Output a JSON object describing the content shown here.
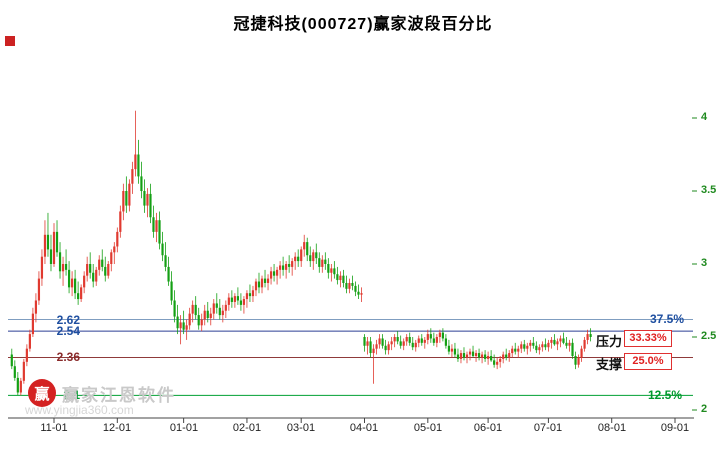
{
  "title": "冠捷科技(000727)赢家波段百分比",
  "watermark": {
    "logo_char": "赢",
    "text": "赢家江恩软件",
    "url": "www.yingjia360.com"
  },
  "annotations": {
    "pressure_label": "压力",
    "support_label": "支撑"
  },
  "colors": {
    "up": "#e03a30",
    "down": "#14a014",
    "axis_text": "#1f8a1f",
    "axis_line": "#444444",
    "box_border": "#e03030",
    "box_text": "#e02020"
  },
  "chart_data": {
    "type": "candlestick",
    "title": "冠捷科技(000727)赢家波段百分比",
    "ylim": [
      2,
      4
    ],
    "grid": false,
    "y_ticks": [
      "4",
      "3.5",
      "3",
      "2.5",
      "2"
    ],
    "y_tick_values": [
      4,
      3.5,
      3,
      2.5,
      2
    ],
    "x_ticks": [
      "11-01",
      "12-01",
      "01-01",
      "02-01",
      "03-01",
      "04-01",
      "05-01",
      "06-01",
      "07-01",
      "08-01",
      "09-01"
    ],
    "x_tick_indices": [
      14,
      35,
      57,
      78,
      96,
      117,
      138,
      158,
      178,
      199,
      220
    ],
    "levels": [
      {
        "price": "2.62",
        "value": 2.62,
        "percent": "37.5%",
        "line_color": "#7f9dc0",
        "text_color": "#1f4fa0"
      },
      {
        "price": "2.54",
        "value": 2.54,
        "percent": "33.33%",
        "line_color": "#2b3f94",
        "text_color": "#1f4fa0"
      },
      {
        "price": "2.36",
        "value": 2.36,
        "percent": "25.0%",
        "line_color": "#8f3a3a",
        "text_color": "#8a2b2b"
      },
      {
        "price": "2.1",
        "value": 2.1,
        "percent": "12.5%",
        "line_color": "#00a032",
        "text_color": "#00992e"
      }
    ],
    "candles": [
      [
        2.38,
        2.42,
        2.28,
        2.3
      ],
      [
        2.3,
        2.34,
        2.2,
        2.22
      ],
      [
        2.22,
        2.26,
        2.1,
        2.12
      ],
      [
        2.12,
        2.22,
        2.1,
        2.2
      ],
      [
        2.2,
        2.35,
        2.18,
        2.33
      ],
      [
        2.33,
        2.45,
        2.3,
        2.42
      ],
      [
        2.42,
        2.55,
        2.4,
        2.52
      ],
      [
        2.52,
        2.7,
        2.5,
        2.66
      ],
      [
        2.66,
        2.8,
        2.6,
        2.75
      ],
      [
        2.75,
        2.95,
        2.72,
        2.9
      ],
      [
        2.9,
        3.1,
        2.85,
        3.05
      ],
      [
        3.05,
        3.3,
        3.0,
        3.2
      ],
      [
        3.2,
        3.35,
        3.05,
        3.1
      ],
      [
        3.1,
        3.2,
        2.95,
        3.0
      ],
      [
        3.0,
        3.28,
        2.98,
        3.22
      ],
      [
        3.22,
        3.3,
        3.05,
        3.08
      ],
      [
        3.08,
        3.15,
        2.9,
        2.95
      ],
      [
        2.95,
        3.05,
        2.85,
        3.0
      ],
      [
        3.0,
        3.1,
        2.92,
        2.96
      ],
      [
        2.96,
        3.02,
        2.8,
        2.84
      ],
      [
        2.84,
        2.95,
        2.78,
        2.9
      ],
      [
        2.9,
        2.96,
        2.76,
        2.8
      ],
      [
        2.8,
        2.88,
        2.72,
        2.76
      ],
      [
        2.76,
        2.86,
        2.74,
        2.84
      ],
      [
        2.84,
        2.95,
        2.8,
        2.92
      ],
      [
        2.92,
        3.05,
        2.88,
        3.0
      ],
      [
        3.0,
        3.08,
        2.9,
        2.94
      ],
      [
        2.94,
        3.0,
        2.84,
        2.88
      ],
      [
        2.88,
        2.98,
        2.85,
        2.96
      ],
      [
        2.96,
        3.06,
        2.92,
        3.03
      ],
      [
        3.03,
        3.1,
        2.95,
        2.98
      ],
      [
        2.98,
        3.05,
        2.88,
        2.92
      ],
      [
        2.92,
        3.02,
        2.9,
        3.0
      ],
      [
        3.0,
        3.1,
        2.95,
        3.08
      ],
      [
        3.08,
        3.15,
        3.0,
        3.12
      ],
      [
        3.12,
        3.25,
        3.08,
        3.22
      ],
      [
        3.22,
        3.4,
        3.18,
        3.36
      ],
      [
        3.36,
        3.55,
        3.3,
        3.5
      ],
      [
        3.5,
        3.6,
        3.35,
        3.4
      ],
      [
        3.4,
        3.58,
        3.36,
        3.55
      ],
      [
        3.55,
        3.7,
        3.48,
        3.65
      ],
      [
        3.65,
        4.05,
        3.6,
        3.75
      ],
      [
        3.75,
        3.85,
        3.55,
        3.6
      ],
      [
        3.6,
        3.7,
        3.45,
        3.5
      ],
      [
        3.5,
        3.58,
        3.35,
        3.4
      ],
      [
        3.4,
        3.52,
        3.32,
        3.48
      ],
      [
        3.48,
        3.55,
        3.28,
        3.32
      ],
      [
        3.32,
        3.4,
        3.18,
        3.22
      ],
      [
        3.22,
        3.35,
        3.15,
        3.3
      ],
      [
        3.3,
        3.36,
        3.1,
        3.14
      ],
      [
        3.14,
        3.22,
        3.02,
        3.06
      ],
      [
        3.06,
        3.15,
        2.95,
        2.98
      ],
      [
        2.98,
        3.05,
        2.85,
        2.88
      ],
      [
        2.88,
        2.95,
        2.72,
        2.75
      ],
      [
        2.75,
        2.82,
        2.6,
        2.64
      ],
      [
        2.64,
        2.72,
        2.52,
        2.56
      ],
      [
        2.56,
        2.65,
        2.45,
        2.6
      ],
      [
        2.6,
        2.68,
        2.52,
        2.55
      ],
      [
        2.55,
        2.62,
        2.48,
        2.58
      ],
      [
        2.58,
        2.7,
        2.55,
        2.66
      ],
      [
        2.66,
        2.75,
        2.6,
        2.72
      ],
      [
        2.72,
        2.78,
        2.62,
        2.65
      ],
      [
        2.65,
        2.7,
        2.55,
        2.58
      ],
      [
        2.58,
        2.66,
        2.54,
        2.62
      ],
      [
        2.62,
        2.72,
        2.58,
        2.68
      ],
      [
        2.68,
        2.74,
        2.6,
        2.63
      ],
      [
        2.63,
        2.7,
        2.58,
        2.66
      ],
      [
        2.66,
        2.76,
        2.62,
        2.73
      ],
      [
        2.73,
        2.8,
        2.66,
        2.7
      ],
      [
        2.7,
        2.76,
        2.62,
        2.65
      ],
      [
        2.65,
        2.72,
        2.6,
        2.68
      ],
      [
        2.68,
        2.75,
        2.63,
        2.72
      ],
      [
        2.72,
        2.8,
        2.68,
        2.77
      ],
      [
        2.77,
        2.82,
        2.7,
        2.74
      ],
      [
        2.74,
        2.8,
        2.7,
        2.78
      ],
      [
        2.78,
        2.84,
        2.72,
        2.75
      ],
      [
        2.75,
        2.8,
        2.68,
        2.72
      ],
      [
        2.72,
        2.78,
        2.66,
        2.76
      ],
      [
        2.76,
        2.82,
        2.7,
        2.8
      ],
      [
        2.8,
        2.86,
        2.74,
        2.78
      ],
      [
        2.78,
        2.85,
        2.74,
        2.82
      ],
      [
        2.82,
        2.9,
        2.78,
        2.88
      ],
      [
        2.88,
        2.94,
        2.8,
        2.84
      ],
      [
        2.84,
        2.92,
        2.8,
        2.9
      ],
      [
        2.9,
        2.96,
        2.84,
        2.87
      ],
      [
        2.87,
        2.93,
        2.82,
        2.9
      ],
      [
        2.9,
        2.98,
        2.86,
        2.95
      ],
      [
        2.95,
        3.0,
        2.88,
        2.92
      ],
      [
        2.92,
        2.98,
        2.86,
        2.96
      ],
      [
        2.96,
        3.02,
        2.9,
        2.99
      ],
      [
        2.99,
        3.05,
        2.92,
        2.96
      ],
      [
        2.96,
        3.02,
        2.9,
        3.0
      ],
      [
        3.0,
        3.06,
        2.94,
        2.98
      ],
      [
        2.98,
        3.04,
        2.92,
        3.02
      ],
      [
        3.02,
        3.08,
        2.96,
        3.05
      ],
      [
        3.05,
        3.1,
        2.98,
        3.02
      ],
      [
        3.02,
        3.12,
        2.98,
        3.1
      ],
      [
        3.1,
        3.2,
        3.05,
        3.15
      ],
      [
        3.15,
        3.18,
        3.02,
        3.06
      ],
      [
        3.06,
        3.12,
        2.98,
        3.02
      ],
      [
        3.02,
        3.1,
        2.96,
        3.08
      ],
      [
        3.08,
        3.14,
        3.0,
        3.04
      ],
      [
        3.04,
        3.08,
        2.94,
        2.98
      ],
      [
        2.98,
        3.06,
        2.94,
        3.03
      ],
      [
        3.03,
        3.08,
        2.96,
        3.0
      ],
      [
        3.0,
        3.04,
        2.9,
        2.94
      ],
      [
        2.94,
        3.0,
        2.88,
        2.97
      ],
      [
        2.97,
        3.02,
        2.9,
        2.93
      ],
      [
        2.93,
        2.98,
        2.86,
        2.89
      ],
      [
        2.89,
        2.95,
        2.84,
        2.92
      ],
      [
        2.92,
        2.96,
        2.84,
        2.87
      ],
      [
        2.87,
        2.92,
        2.8,
        2.83
      ],
      [
        2.83,
        2.9,
        2.8,
        2.87
      ],
      [
        2.87,
        2.92,
        2.82,
        2.85
      ],
      [
        2.85,
        2.88,
        2.78,
        2.81
      ],
      [
        2.81,
        2.86,
        2.76,
        2.79
      ],
      [
        2.79,
        2.84,
        2.74,
        2.8
      ],
      [
        2.5,
        2.52,
        2.4,
        2.44
      ],
      [
        2.44,
        2.5,
        2.38,
        2.47
      ],
      [
        2.47,
        2.5,
        2.36,
        2.39
      ],
      [
        2.39,
        2.45,
        2.18,
        2.42
      ],
      [
        2.42,
        2.48,
        2.38,
        2.45
      ],
      [
        2.45,
        2.52,
        2.42,
        2.49
      ],
      [
        2.49,
        2.52,
        2.42,
        2.44
      ],
      [
        2.44,
        2.48,
        2.38,
        2.41
      ],
      [
        2.41,
        2.47,
        2.38,
        2.45
      ],
      [
        2.45,
        2.5,
        2.41,
        2.47
      ],
      [
        2.47,
        2.52,
        2.43,
        2.5
      ],
      [
        2.5,
        2.54,
        2.45,
        2.47
      ],
      [
        2.47,
        2.51,
        2.42,
        2.44
      ],
      [
        2.44,
        2.49,
        2.41,
        2.47
      ],
      [
        2.47,
        2.52,
        2.44,
        2.5
      ],
      [
        2.5,
        2.53,
        2.44,
        2.46
      ],
      [
        2.46,
        2.5,
        2.41,
        2.43
      ],
      [
        2.43,
        2.48,
        2.4,
        2.46
      ],
      [
        2.46,
        2.51,
        2.43,
        2.49
      ],
      [
        2.49,
        2.52,
        2.44,
        2.46
      ],
      [
        2.46,
        2.5,
        2.42,
        2.48
      ],
      [
        2.48,
        2.55,
        2.45,
        2.52
      ],
      [
        2.52,
        2.56,
        2.46,
        2.49
      ],
      [
        2.49,
        2.53,
        2.44,
        2.46
      ],
      [
        2.46,
        2.52,
        2.43,
        2.5
      ],
      [
        2.5,
        2.55,
        2.46,
        2.53
      ],
      [
        2.53,
        2.56,
        2.47,
        2.49
      ],
      [
        2.49,
        2.52,
        2.42,
        2.44
      ],
      [
        2.44,
        2.48,
        2.38,
        2.4
      ],
      [
        2.4,
        2.45,
        2.36,
        2.42
      ],
      [
        2.42,
        2.46,
        2.36,
        2.38
      ],
      [
        2.38,
        2.42,
        2.33,
        2.35
      ],
      [
        2.35,
        2.41,
        2.32,
        2.39
      ],
      [
        2.39,
        2.43,
        2.34,
        2.36
      ],
      [
        2.36,
        2.4,
        2.32,
        2.38
      ],
      [
        2.38,
        2.42,
        2.34,
        2.4
      ],
      [
        2.4,
        2.44,
        2.36,
        2.37
      ],
      [
        2.37,
        2.41,
        2.33,
        2.39
      ],
      [
        2.39,
        2.42,
        2.34,
        2.36
      ],
      [
        2.36,
        2.4,
        2.32,
        2.38
      ],
      [
        2.38,
        2.41,
        2.33,
        2.35
      ],
      [
        2.35,
        2.4,
        2.31,
        2.37
      ],
      [
        2.37,
        2.41,
        2.33,
        2.34
      ],
      [
        2.34,
        2.38,
        2.29,
        2.31
      ],
      [
        2.31,
        2.36,
        2.28,
        2.33
      ],
      [
        2.33,
        2.37,
        2.29,
        2.35
      ],
      [
        2.35,
        2.4,
        2.32,
        2.38
      ],
      [
        2.38,
        2.42,
        2.34,
        2.36
      ],
      [
        2.36,
        2.41,
        2.33,
        2.39
      ],
      [
        2.39,
        2.44,
        2.36,
        2.42
      ],
      [
        2.42,
        2.46,
        2.38,
        2.4
      ],
      [
        2.4,
        2.44,
        2.36,
        2.42
      ],
      [
        2.42,
        2.47,
        2.39,
        2.45
      ],
      [
        2.45,
        2.48,
        2.4,
        2.42
      ],
      [
        2.42,
        2.46,
        2.38,
        2.44
      ],
      [
        2.44,
        2.48,
        2.4,
        2.46
      ],
      [
        2.46,
        2.5,
        2.42,
        2.44
      ],
      [
        2.44,
        2.47,
        2.39,
        2.41
      ],
      [
        2.41,
        2.45,
        2.38,
        2.43
      ],
      [
        2.43,
        2.47,
        2.4,
        2.45
      ],
      [
        2.45,
        2.49,
        2.41,
        2.43
      ],
      [
        2.43,
        2.48,
        2.4,
        2.46
      ],
      [
        2.46,
        2.5,
        2.42,
        2.48
      ],
      [
        2.48,
        2.52,
        2.44,
        2.45
      ],
      [
        2.45,
        2.49,
        2.41,
        2.47
      ],
      [
        2.47,
        2.51,
        2.43,
        2.49
      ],
      [
        2.49,
        2.53,
        2.45,
        2.46
      ],
      [
        2.46,
        2.5,
        2.42,
        2.44
      ],
      [
        2.44,
        2.48,
        2.4,
        2.46
      ],
      [
        2.46,
        2.49,
        2.35,
        2.37
      ],
      [
        2.37,
        2.4,
        2.28,
        2.31
      ],
      [
        2.31,
        2.38,
        2.29,
        2.36
      ],
      [
        2.36,
        2.44,
        2.33,
        2.42
      ],
      [
        2.42,
        2.5,
        2.4,
        2.48
      ],
      [
        2.48,
        2.55,
        2.45,
        2.52
      ],
      [
        2.52,
        2.56,
        2.47,
        2.5
      ]
    ]
  }
}
